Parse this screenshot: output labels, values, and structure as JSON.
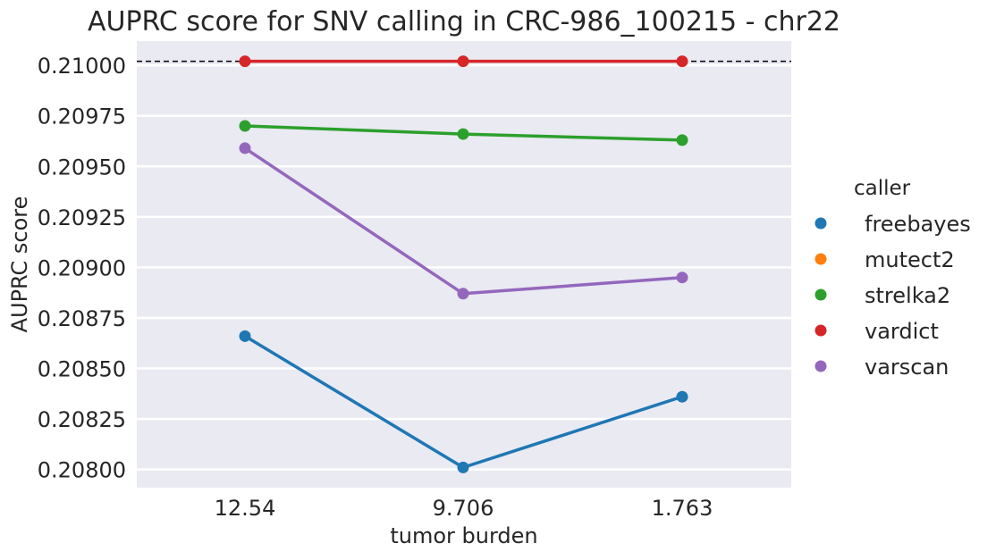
{
  "chart_data": {
    "type": "line",
    "title": "AUPRC score for SNV calling in CRC-986_100215 - chr22",
    "xlabel": "tumor burden",
    "ylabel": "AUPRC score",
    "categories": [
      "12.54",
      "9.706",
      "1.763"
    ],
    "ylim": [
      0.20791,
      0.21012
    ],
    "yticks": [
      0.208,
      0.20825,
      0.2085,
      0.20875,
      0.209,
      0.20925,
      0.2095,
      0.20975,
      0.21
    ],
    "ytick_labels": [
      "0.20800",
      "0.20825",
      "0.20850",
      "0.20875",
      "0.20900",
      "0.20925",
      "0.20950",
      "0.20975",
      "0.21000"
    ],
    "reference_line": {
      "value": 0.21002,
      "style": "dashed",
      "color": "#000000"
    },
    "grid": true,
    "background": "#eaeaf2",
    "legend": {
      "title": "caller",
      "placement": "right"
    },
    "series": [
      {
        "name": "freebayes",
        "color": "#1f77b4",
        "values": [
          0.20866,
          0.20801,
          0.20836
        ]
      },
      {
        "name": "mutect2",
        "color": "#ff7f0e",
        "values": [
          null,
          null,
          null
        ]
      },
      {
        "name": "strelka2",
        "color": "#2ca02c",
        "values": [
          0.2097,
          0.20966,
          0.20963
        ]
      },
      {
        "name": "vardict",
        "color": "#d62728",
        "values": [
          0.21002,
          0.21002,
          0.21002
        ]
      },
      {
        "name": "varscan",
        "color": "#9467bd",
        "values": [
          0.20959,
          0.20887,
          0.20895
        ]
      }
    ]
  }
}
